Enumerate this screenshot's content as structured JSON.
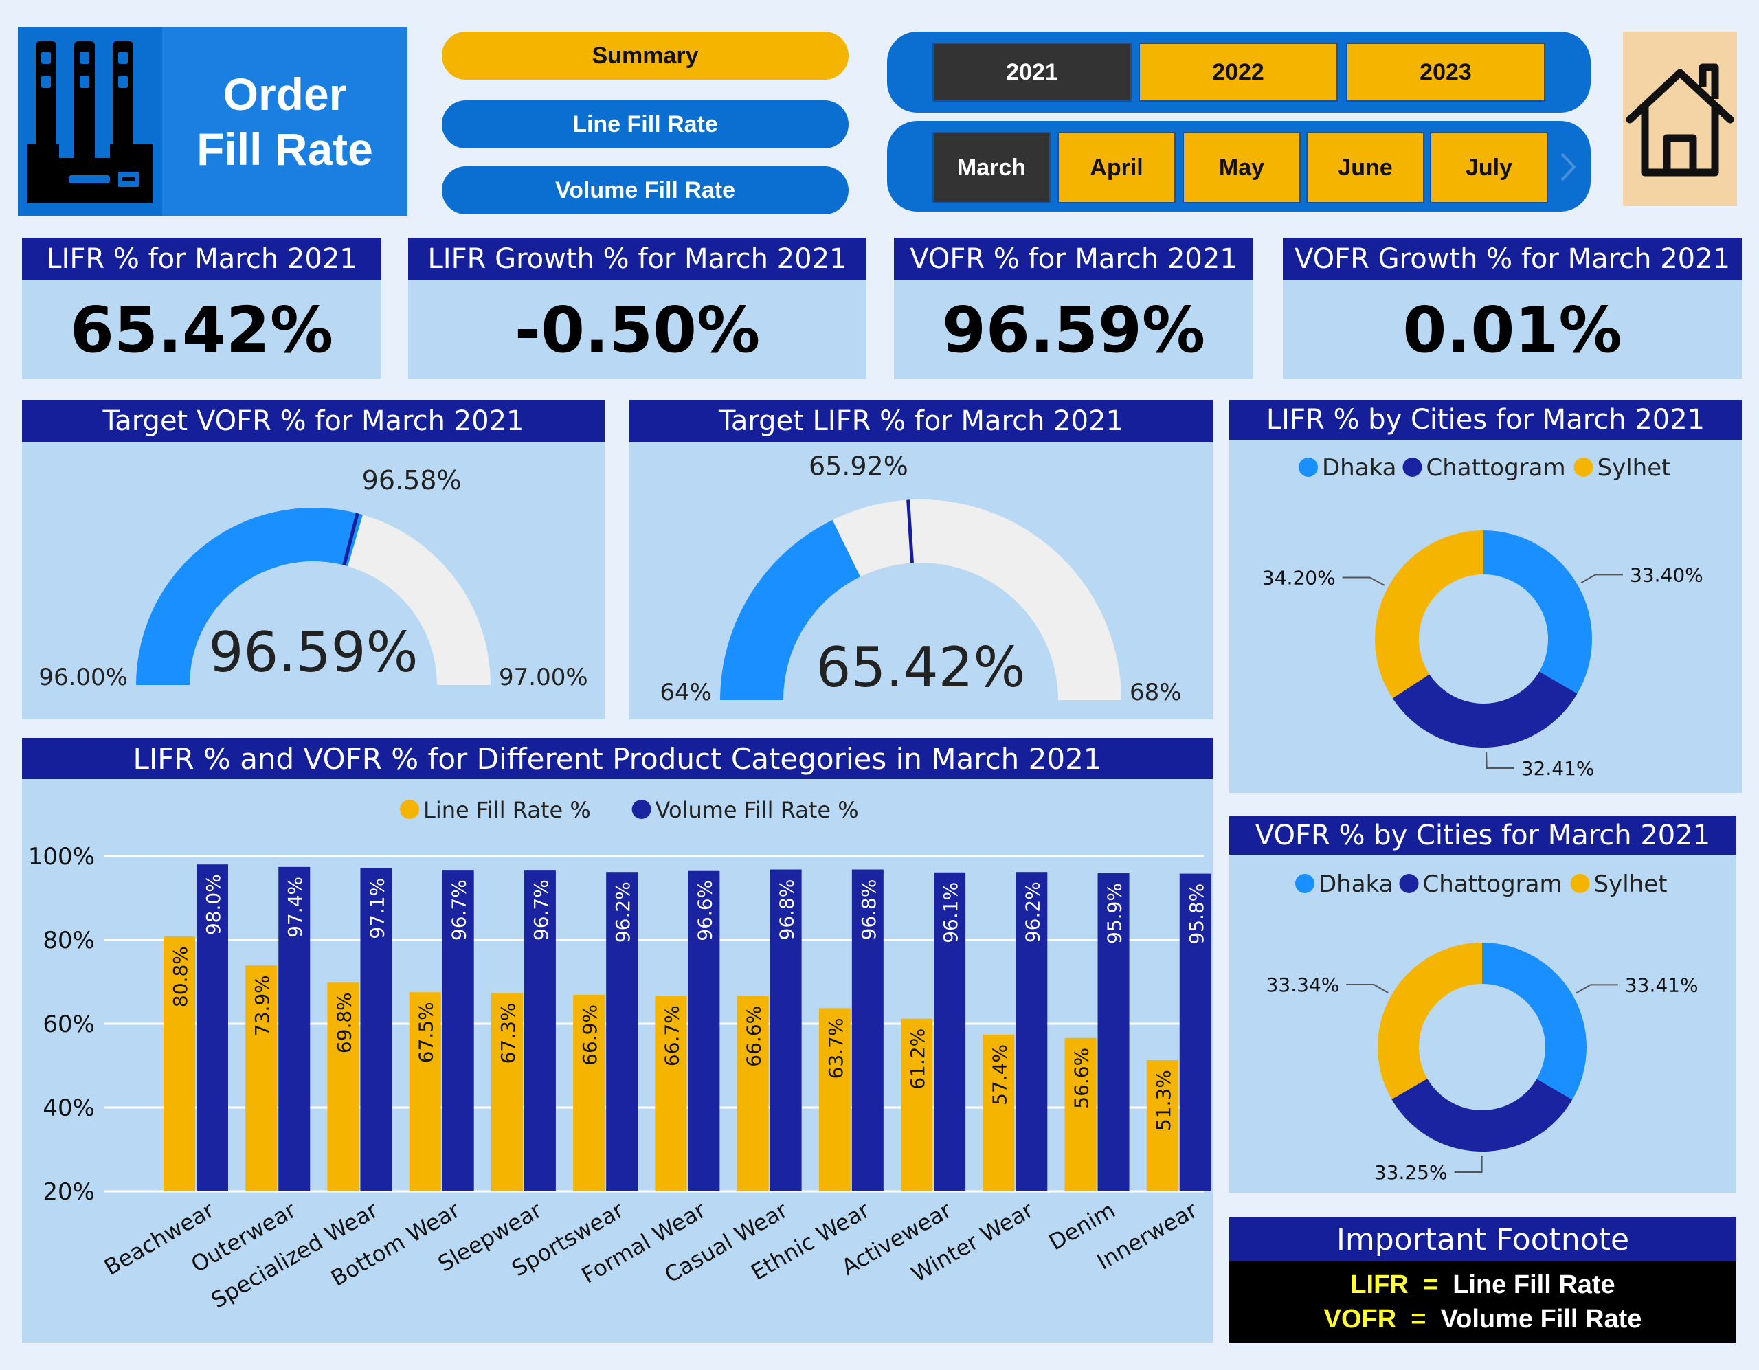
{
  "header": {
    "title_line1": "Order",
    "title_line2": "Fill Rate",
    "icon": "binders-archive-icon"
  },
  "nav": {
    "summary": "Summary",
    "line_fill_rate": "Line Fill Rate",
    "volume_fill_rate": "Volume Fill Rate"
  },
  "year_slicer": {
    "years": [
      "2021",
      "2022",
      "2023"
    ],
    "selected": "2021"
  },
  "month_slicer": {
    "months": [
      "March",
      "April",
      "May",
      "June",
      "July"
    ],
    "selected": "March",
    "next_icon": "chevron-right-icon"
  },
  "home_icon": "house-icon",
  "kpis": {
    "lifr": {
      "label": "LIFR % for March 2021",
      "value": "65.42%"
    },
    "lifr_growth": {
      "label": "LIFR Growth % for March 2021",
      "value": "-0.50%"
    },
    "vofr": {
      "label": "VOFR % for March 2021",
      "value": "96.59%"
    },
    "vofr_growth": {
      "label": "VOFR Growth % for March 2021",
      "value": "0.01%"
    }
  },
  "colors": {
    "header_blue": "#141f99",
    "panel_bg": "#b9d8f3",
    "yellow": "#f5b400",
    "dark_blue": "#1a24a0",
    "light_blue": "#1a8fff",
    "gauge_track": "#efefef"
  },
  "chart_data": [
    {
      "type": "gauge",
      "title": "Target VOFR % for March 2021",
      "value": 96.59,
      "value_label": "96.59%",
      "min": 96.0,
      "min_label": "96.00%",
      "max": 97.0,
      "max_label": "97.00%",
      "target": 96.58,
      "target_label": "96.58%"
    },
    {
      "type": "gauge",
      "title": "Target LIFR % for March 2021",
      "value": 65.42,
      "value_label": "65.42%",
      "min": 64,
      "min_label": "64%",
      "max": 68,
      "max_label": "68%",
      "target": 65.92,
      "target_label": "65.92%"
    },
    {
      "type": "donut",
      "title": "LIFR % by Cities for March 2021",
      "legend_position": "top",
      "slices": [
        {
          "name": "Dhaka",
          "value": 33.4,
          "label": "33.40%",
          "color": "#1a8fff"
        },
        {
          "name": "Chattogram",
          "value": 32.41,
          "label": "32.41%",
          "color": "#1a24a0"
        },
        {
          "name": "Sylhet",
          "value": 34.2,
          "label": "34.20%",
          "color": "#f5b400"
        }
      ]
    },
    {
      "type": "donut",
      "title": "VOFR % by Cities for March 2021",
      "legend_position": "top",
      "slices": [
        {
          "name": "Dhaka",
          "value": 33.41,
          "label": "33.41%",
          "color": "#1a8fff"
        },
        {
          "name": "Chattogram",
          "value": 33.25,
          "label": "33.25%",
          "color": "#1a24a0"
        },
        {
          "name": "Sylhet",
          "value": 33.34,
          "label": "33.34%",
          "color": "#f5b400"
        }
      ]
    },
    {
      "type": "bar",
      "title": "LIFR % and VOFR % for Different Product Categories in March 2021",
      "legend_position": "top",
      "categories": [
        "Beachwear",
        "Outerwear",
        "Specialized Wear",
        "Bottom Wear",
        "Sleepwear",
        "Sportswear",
        "Formal Wear",
        "Casual Wear",
        "Ethnic Wear",
        "Activewear",
        "Winter Wear",
        "Denim",
        "Innerwear"
      ],
      "series": [
        {
          "name": "Line Fill Rate %",
          "color": "#f5b400",
          "values": [
            80.8,
            73.9,
            69.8,
            67.5,
            67.3,
            66.9,
            66.7,
            66.6,
            63.7,
            61.2,
            57.4,
            56.6,
            51.3
          ]
        },
        {
          "name": "Volume Fill Rate %",
          "color": "#1a24a0",
          "values": [
            98.0,
            97.4,
            97.1,
            96.7,
            96.7,
            96.2,
            96.6,
            96.8,
            96.8,
            96.1,
            96.2,
            95.9,
            95.8
          ]
        }
      ],
      "ylim": [
        20,
        100
      ],
      "yticks": [
        "20%",
        "40%",
        "60%",
        "80%",
        "100%"
      ],
      "grid": true
    }
  ],
  "footnote": {
    "title": "Important Footnote",
    "lines": [
      {
        "key": "LIFR",
        "eq": "=",
        "value": "Line Fill Rate"
      },
      {
        "key": "VOFR",
        "eq": "=",
        "value": "Volume Fill Rate"
      }
    ]
  }
}
